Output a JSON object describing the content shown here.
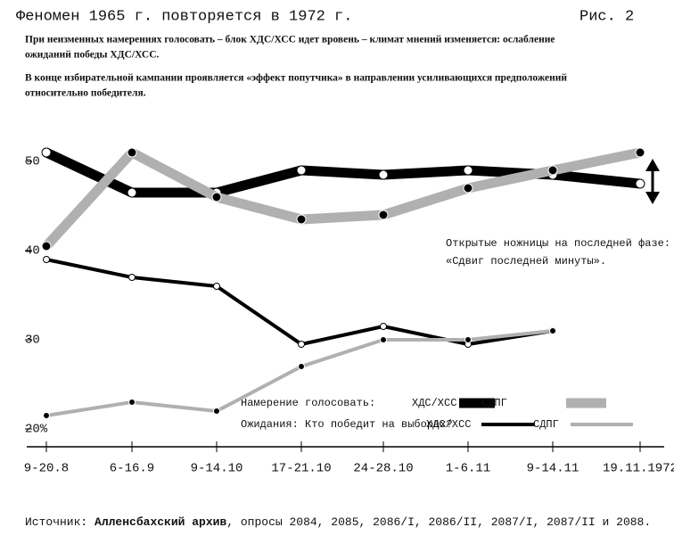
{
  "chart_data": {
    "type": "line",
    "title": "Феномен 1965 г. повторяется в 1972 г.",
    "figure_label": "Рис. 2",
    "subtitle": [
      "При неизменных намерениях голосовать – блок ХДС/ХСС идет вровень – климат мнений изменяется: ослабление",
      "ожиданий победы ХДС/ХСС.",
      "В конце избирательной кампании проявляется «эффект попутчика» в направлении усиливающихся предположений",
      "относительно победителя."
    ],
    "annotation": [
      "Открытые ножницы на последней фазе:",
      "«Сдвиг последней минуты»."
    ],
    "legend_groups": [
      "Намерение голосовать:",
      "Ожидания: Кто победит на выборах?"
    ],
    "categories": [
      "9-20.8",
      "6-16.9",
      "9-14.10",
      "17-21.10",
      "24-28.10",
      "1-6.11",
      "9-14.11",
      "19.11.1972"
    ],
    "series": [
      {
        "name": "ХДС/ХСС",
        "color": "#000000",
        "line_width": 11,
        "values": [
          51,
          46.5,
          46.5,
          49,
          48.5,
          49,
          48.5,
          47.5
        ]
      },
      {
        "name": "СДПГ",
        "color": "#b0b0b0",
        "line_width": 11,
        "values": [
          40.5,
          51,
          46,
          43.5,
          44,
          47,
          49,
          51
        ]
      },
      {
        "name": "ХДС/ХСС",
        "color": "#000000",
        "line_width": 4,
        "values": [
          39,
          37,
          36,
          29.5,
          31.5,
          29.5,
          31,
          null
        ]
      },
      {
        "name": "СДПГ",
        "color": "#b0b0b0",
        "line_width": 4,
        "values": [
          21.5,
          23,
          22,
          27,
          30,
          30,
          31,
          null
        ]
      }
    ],
    "ylim": [
      18,
      53
    ],
    "yticks": [
      50,
      40,
      30,
      {
        "value": 20,
        "label": "20%"
      }
    ],
    "grid": false,
    "source": {
      "label": "Источник:",
      "name": "Алленсбахский архив",
      "rest": ", опросы 2084, 2085, 2086/I, 2086/II, 2087/I, 2087/II и 2088."
    }
  }
}
